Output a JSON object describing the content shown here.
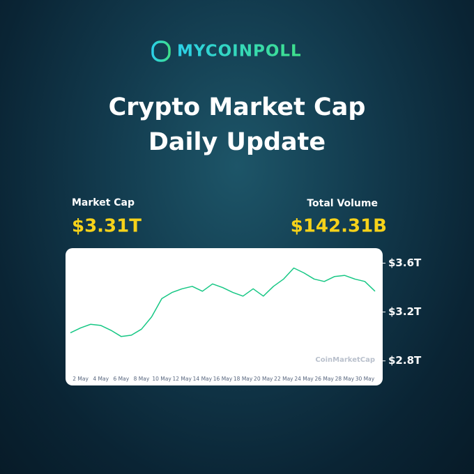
{
  "brand": "MYCOINPOLL",
  "title_lines": [
    "Crypto Market Cap",
    "Daily Update"
  ],
  "stats": [
    {
      "label": "Market Cap",
      "value": "$3.31T"
    },
    {
      "label": "Total Volume",
      "value": "$142.31B"
    }
  ],
  "chart_data": {
    "type": "line",
    "watermark": "CoinMarketCap",
    "categories": [
      null,
      "2 May",
      null,
      "4 May",
      null,
      "6 May",
      null,
      "8 May",
      null,
      "10 May",
      null,
      "12 May",
      null,
      "14 May",
      null,
      "16 May",
      null,
      "18 May",
      null,
      "20 May",
      null,
      "22 May",
      null,
      "24 May",
      null,
      "26 May",
      null,
      "28 May",
      null,
      "30 May",
      null
    ],
    "series": [
      {
        "name": "Market Cap",
        "color": "#16c784",
        "values": [
          3.03,
          3.07,
          3.1,
          3.09,
          3.05,
          3.0,
          3.01,
          3.06,
          3.16,
          3.31,
          3.36,
          3.39,
          3.41,
          3.37,
          3.43,
          3.4,
          3.36,
          3.33,
          3.39,
          3.33,
          3.41,
          3.47,
          3.56,
          3.52,
          3.47,
          3.45,
          3.49,
          3.5,
          3.47,
          3.45,
          3.37
        ]
      }
    ],
    "ylim": [
      2.73,
      3.7
    ],
    "yticks": [
      {
        "value": 2.8,
        "label": "$2.8T"
      },
      {
        "value": 3.2,
        "label": "$3.2T"
      },
      {
        "value": 3.6,
        "label": "$3.6T"
      }
    ],
    "grid": false
  }
}
